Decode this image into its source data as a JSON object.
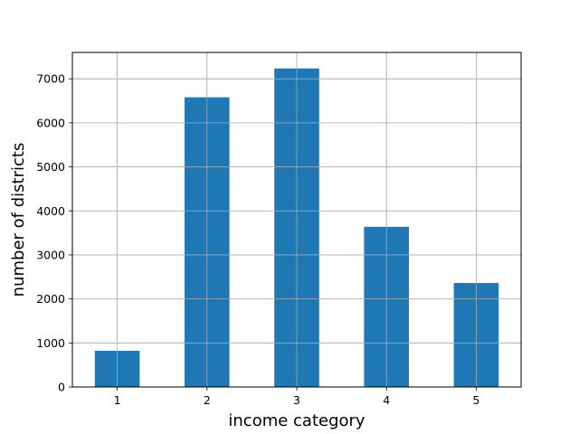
{
  "chart_data": {
    "type": "bar",
    "title": "",
    "xlabel": "income category",
    "ylabel": "number of districts",
    "categories": [
      "1",
      "2",
      "3",
      "4",
      "5"
    ],
    "series": [
      {
        "values": [
          822,
          6581,
          7236,
          3639,
          2362
        ],
        "color": "#1f77b4"
      }
    ],
    "ylim": [
      0,
      7600
    ],
    "yticks": [
      0,
      1000,
      2000,
      3000,
      4000,
      5000,
      6000,
      7000
    ],
    "ytick_labels": [
      "0",
      "1000",
      "2000",
      "3000",
      "4000",
      "5000",
      "6000",
      "7000"
    ],
    "grid": true,
    "grid_color": "#b0b0b0",
    "legend": "none"
  }
}
